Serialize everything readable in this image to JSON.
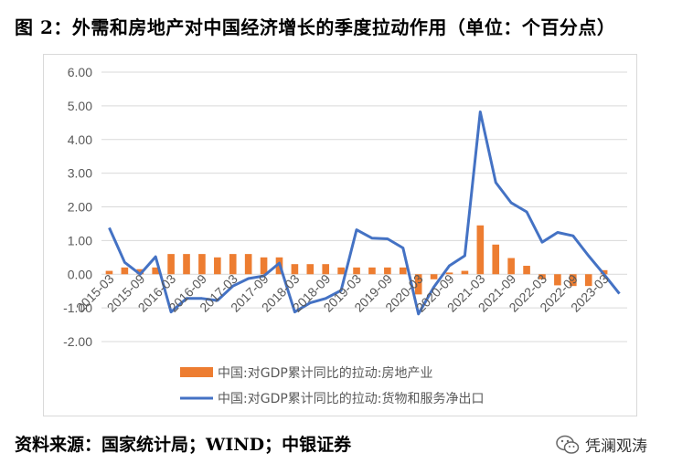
{
  "title": "图 2：外需和房地产对中国经济增长的季度拉动作用（单位：个百分点）",
  "source": "资料来源：国家统计局；WIND；中银证券",
  "watermark": "凭澜观涛",
  "colors": {
    "bar": "#ed7d31",
    "line": "#4472c4",
    "grid": "#d9d9d9",
    "text": "#595959"
  },
  "chart_data": {
    "type": "bar+line",
    "title": "",
    "ylim": [
      -2,
      6
    ],
    "yticks": [
      "6.00",
      "5.00",
      "4.00",
      "3.00",
      "2.00",
      "1.00",
      "0.00",
      "-1.00",
      "-2.00"
    ],
    "grid": true,
    "legend_position": "bottom",
    "x_tick_labels": [
      "2015-03",
      "2015-09",
      "2016-03",
      "2016-09",
      "2017-03",
      "2017-09",
      "2018-03",
      "2018-09",
      "2019-03",
      "2019-09",
      "2020-03",
      "2020-09",
      "2021-03",
      "2021-09",
      "2022-03",
      "2022-09",
      "2023-03"
    ],
    "categories": [
      "2015-03",
      "2015-06",
      "2015-09",
      "2015-12",
      "2016-03",
      "2016-06",
      "2016-09",
      "2016-12",
      "2017-03",
      "2017-06",
      "2017-09",
      "2017-12",
      "2018-03",
      "2018-06",
      "2018-09",
      "2018-12",
      "2019-03",
      "2019-06",
      "2019-09",
      "2019-12",
      "2020-03",
      "2020-06",
      "2020-09",
      "2020-12",
      "2021-03",
      "2021-06",
      "2021-09",
      "2021-12",
      "2022-03",
      "2022-06",
      "2022-09",
      "2022-12",
      "2023-03",
      "2023-06"
    ],
    "series": [
      {
        "name": "中国:对GDP累计同比的拉动:房地产业",
        "kind": "bar",
        "values": [
          0.1,
          0.2,
          0.15,
          0.2,
          0.6,
          0.6,
          0.6,
          0.5,
          0.6,
          0.6,
          0.5,
          0.5,
          0.3,
          0.3,
          0.3,
          0.2,
          0.2,
          0.2,
          0.2,
          0.2,
          -0.6,
          -0.15,
          0.05,
          0.1,
          1.45,
          0.88,
          0.48,
          0.25,
          -0.15,
          -0.33,
          -0.35,
          -0.35,
          0.12,
          0.0
        ]
      },
      {
        "name": "中国:对GDP累计同比的拉动:货物和服务净出口",
        "kind": "line",
        "values": [
          1.38,
          0.35,
          0.0,
          0.52,
          -1.12,
          -0.72,
          -0.72,
          -0.78,
          -0.35,
          -0.13,
          -0.05,
          0.33,
          -1.12,
          -0.85,
          -0.72,
          -0.48,
          1.32,
          1.07,
          1.05,
          0.78,
          -1.18,
          -0.38,
          0.25,
          0.55,
          4.82,
          2.72,
          2.12,
          1.85,
          0.95,
          1.24,
          1.14,
          0.55,
          0.0,
          -0.58
        ]
      }
    ]
  }
}
